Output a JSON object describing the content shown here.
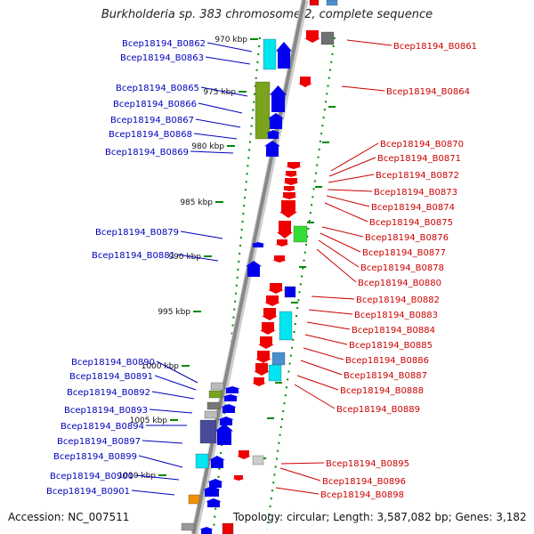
{
  "title": "Burkholderia sp. 383 chromosome 2, complete sequence",
  "accession": "Accession: NC_007511",
  "topology": "Topology: circular; Length: 3,587,082 bp; Genes: 3,182",
  "colors": {
    "backbone": "#888888",
    "forward_cds": "#0000ee",
    "reverse_cds": "#ee0000",
    "left_label": "#0000bb",
    "right_label": "#cc0000",
    "tick": "#008800",
    "cyan": "#00e5f0",
    "olive": "#7aa31e",
    "green": "#33dd33",
    "indigo": "#4a4a9a",
    "grey": "#a0a0a0",
    "orange": "#f09000",
    "steel": "#4a90d0"
  },
  "scale_labels": [
    "970 kbp",
    "975 kbp",
    "980 kbp",
    "985 kbp",
    "990 kbp",
    "995 kbp",
    "1000 kbp",
    "1005 kbp",
    "1010 kbp"
  ],
  "left_labels": [
    "Bcep18194_B0862",
    "Bcep18194_B0863",
    "Bcep18194_B0865",
    "Bcep18194_B0866",
    "Bcep18194_B0867",
    "Bcep18194_B0868",
    "Bcep18194_B0869",
    "Bcep18194_B0879",
    "Bcep18194_B0881",
    "Bcep18194_B0890",
    "Bcep18194_B0891",
    "Bcep18194_B0892",
    "Bcep18194_B0893",
    "Bcep18194_B0894",
    "Bcep18194_B0897",
    "Bcep18194_B0899",
    "Bcep18194_B0900",
    "Bcep18194_B0901"
  ],
  "right_labels": [
    "Bcep18194_B0861",
    "Bcep18194_B0864",
    "Bcep18194_B0870",
    "Bcep18194_B0871",
    "Bcep18194_B0872",
    "Bcep18194_B0873",
    "Bcep18194_B0874",
    "Bcep18194_B0875",
    "Bcep18194_B0876",
    "Bcep18194_B0877",
    "Bcep18194_B0878",
    "Bcep18194_B0880",
    "Bcep18194_B0882",
    "Bcep18194_B0883",
    "Bcep18194_B0884",
    "Bcep18194_B0885",
    "Bcep18194_B0886",
    "Bcep18194_B0887",
    "Bcep18194_B0888",
    "Bcep18194_B0889",
    "Bcep18194_B0895",
    "Bcep18194_B0896",
    "Bcep18194_B0898"
  ]
}
